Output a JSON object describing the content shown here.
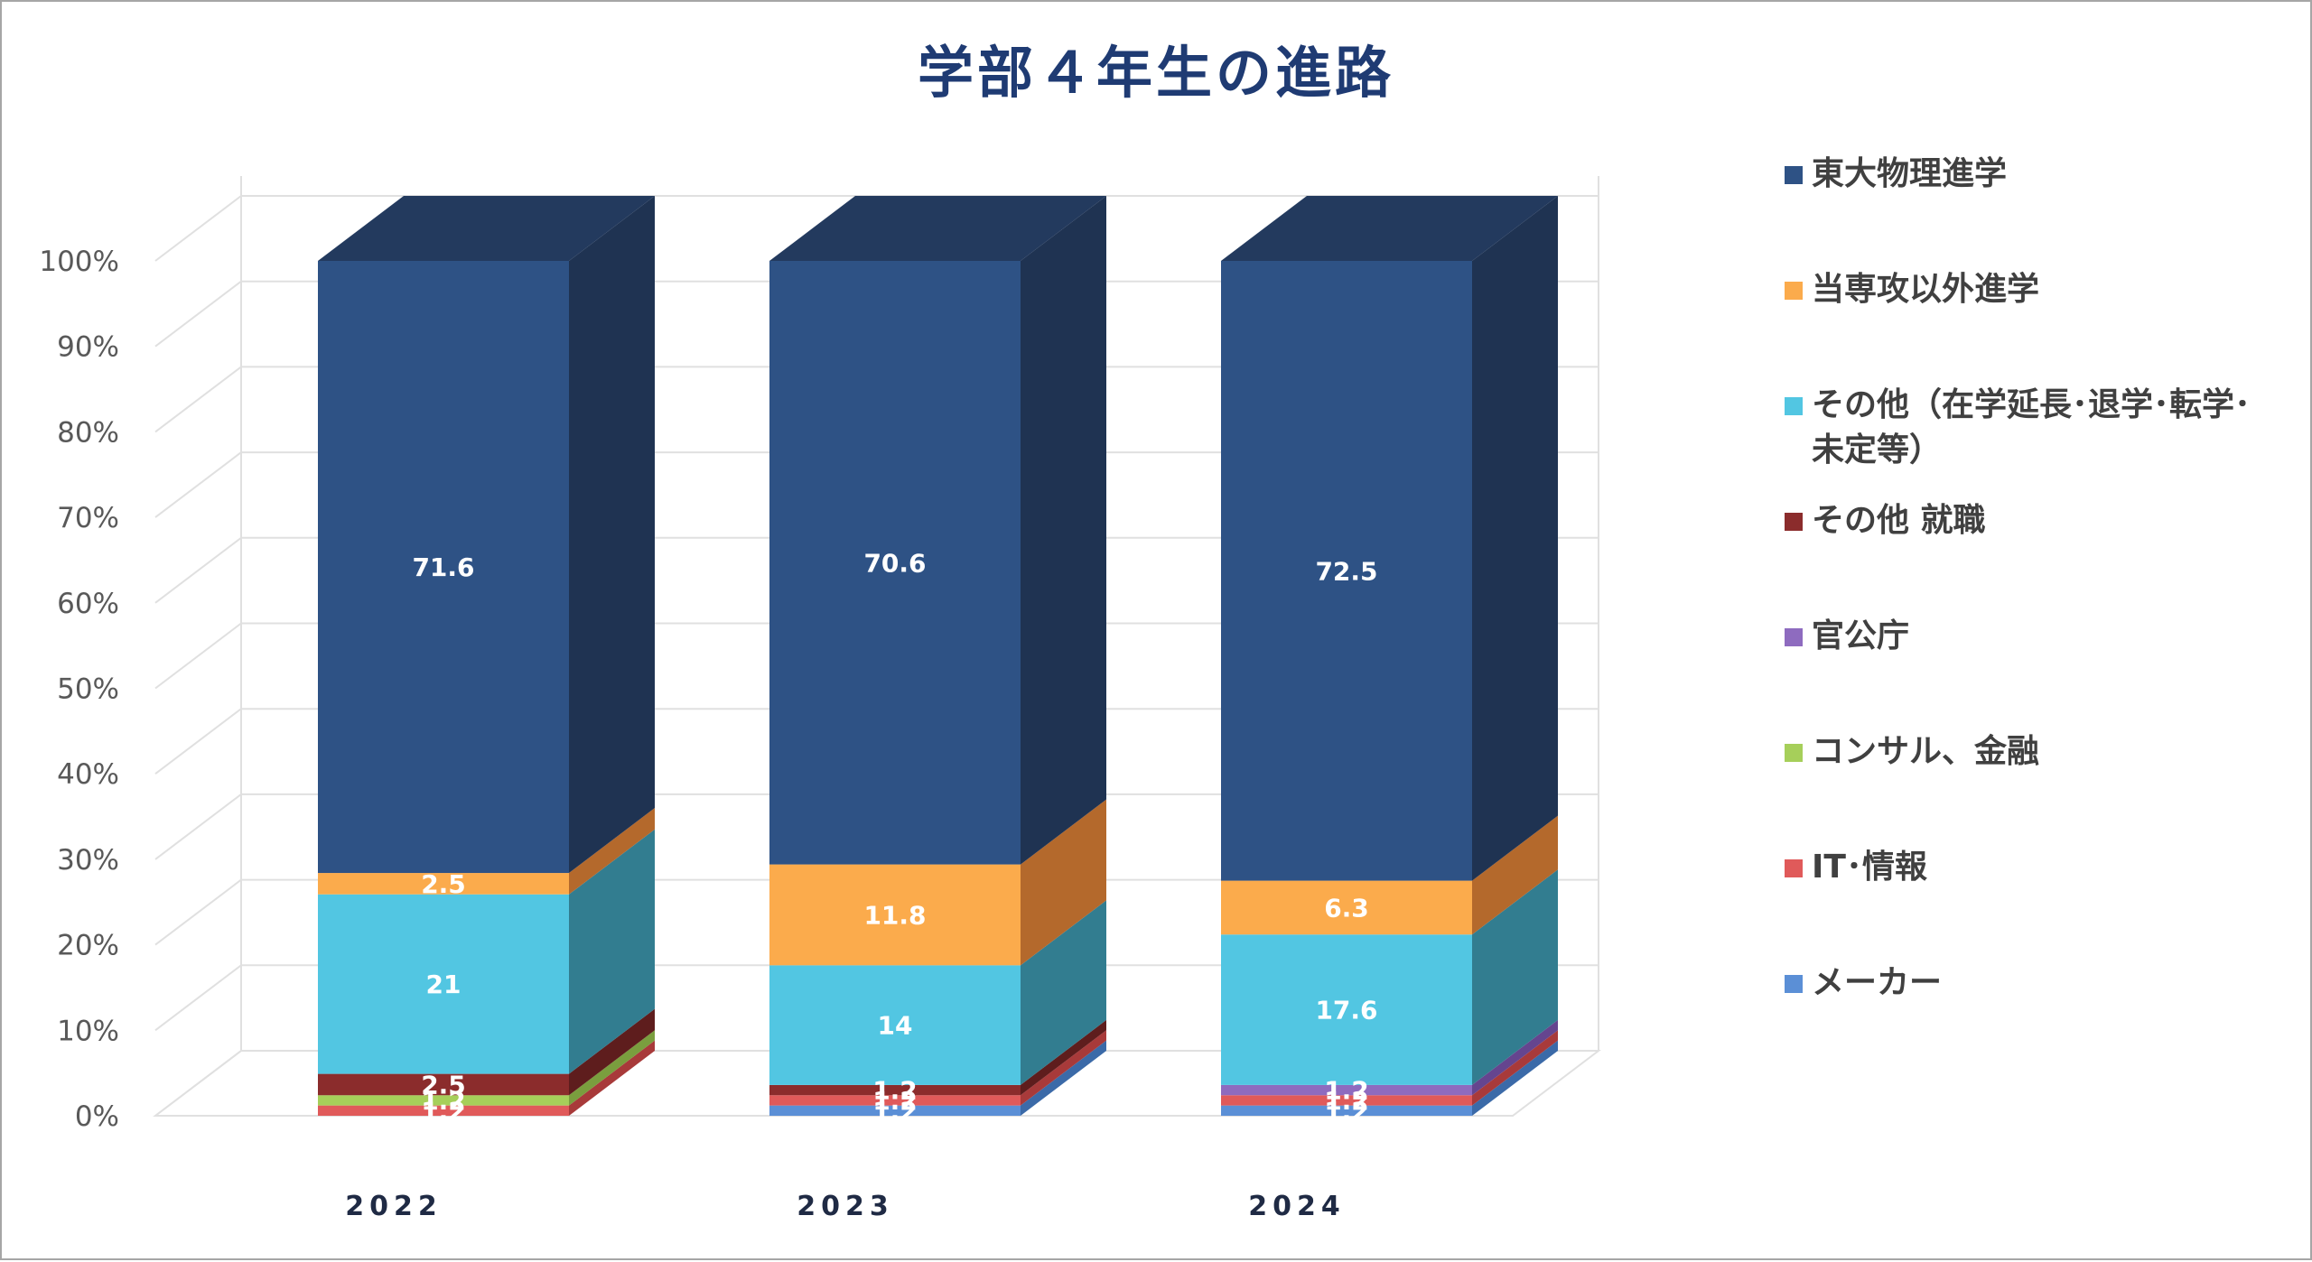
{
  "chart_data": {
    "type": "bar",
    "stacked": true,
    "percent_stacked": true,
    "three_d": true,
    "title": "学部４年生の進路",
    "categories": [
      "2022",
      "2023",
      "2024"
    ],
    "ylim": [
      0,
      100
    ],
    "yticks": [
      "0%",
      "10%",
      "20%",
      "30%",
      "40%",
      "50%",
      "60%",
      "70%",
      "80%",
      "90%",
      "100%"
    ],
    "grid": true,
    "legend_position": "right",
    "series": [
      {
        "name": "メーカー",
        "color": "#5b8fd6",
        "side_color": "#3b6aa8",
        "values": [
          0,
          1.2,
          1.2
        ],
        "labels": [
          "",
          "1.2",
          "1.2"
        ]
      },
      {
        "name": "IT･情報",
        "color": "#e05a5a",
        "side_color": "#a83a3a",
        "values": [
          1.2,
          1.2,
          1.2
        ],
        "labels": [
          "1.2",
          "1.2",
          "1.2"
        ]
      },
      {
        "name": "コンサル、金融",
        "color": "#a6cf5a",
        "side_color": "#7a9e3e",
        "values": [
          1.2,
          0,
          0
        ],
        "labels": [
          "1.2",
          "",
          ""
        ]
      },
      {
        "name": "官公庁",
        "color": "#8e6bbf",
        "side_color": "#65458f",
        "values": [
          0,
          0,
          1.2
        ],
        "labels": [
          "",
          "",
          "1.2"
        ]
      },
      {
        "name": "その他 就職",
        "color": "#8b2c2c",
        "side_color": "#5e1d1d",
        "values": [
          2.5,
          1.2,
          0
        ],
        "labels": [
          "2.5",
          "1.2",
          ""
        ]
      },
      {
        "name": "その他（在学延長･退学･転学･未定等）",
        "legend_lines": [
          "その他（在学延長･退学･転学･",
          "未定等）"
        ],
        "color": "#52c6e2",
        "side_color": "#327d90",
        "values": [
          21,
          14,
          17.6
        ],
        "labels": [
          "21",
          "14",
          "17.6"
        ]
      },
      {
        "name": "当専攻以外進学",
        "color": "#fbab4c",
        "side_color": "#b4692c",
        "values": [
          2.5,
          11.8,
          6.3
        ],
        "labels": [
          "2.5",
          "11.8",
          "6.3"
        ]
      },
      {
        "name": "東大物理進学",
        "color": "#2e5285",
        "side_color": "#1f3352",
        "values": [
          71.6,
          70.6,
          72.5
        ],
        "labels": [
          "71.6",
          "70.6",
          "72.5"
        ]
      }
    ]
  },
  "legend_order": [
    7,
    6,
    5,
    4,
    3,
    2,
    1,
    0
  ]
}
